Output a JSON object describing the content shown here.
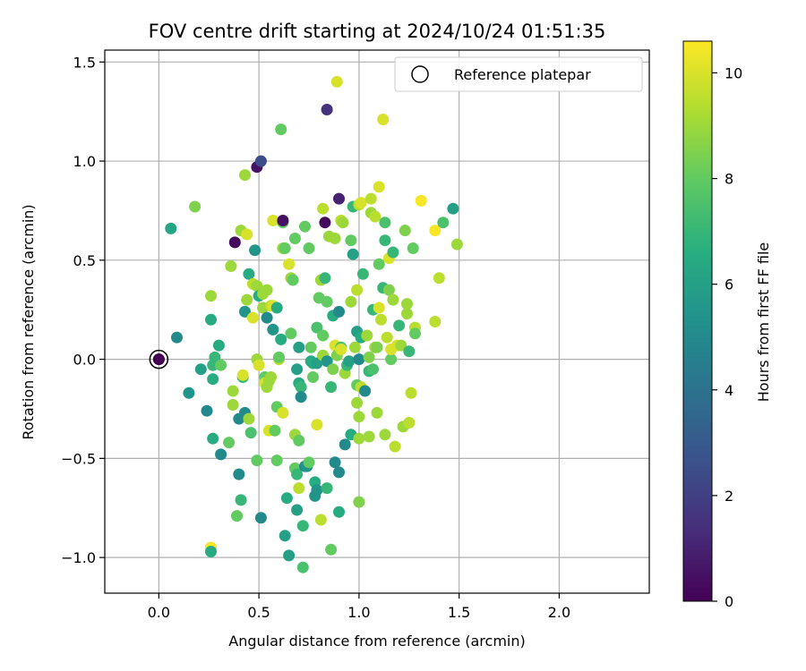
{
  "chart_data": {
    "type": "scatter",
    "title": "FOV centre drift starting at 2024/10/24 01:51:35",
    "xlabel": "Angular distance from reference (arcmin)",
    "ylabel": "Rotation from reference (arcmin)",
    "xlim": [
      -0.27,
      2.45
    ],
    "ylim": [
      -1.18,
      1.56
    ],
    "xticks": [
      0.0,
      0.5,
      1.0,
      1.5,
      2.0
    ],
    "yticks": [
      -1.0,
      -0.5,
      0.0,
      0.5,
      1.0,
      1.5
    ],
    "xtick_labels": [
      "0.0",
      "0.5",
      "1.0",
      "1.5",
      "2.0"
    ],
    "ytick_labels": [
      "−1.0",
      "−0.5",
      "0.0",
      "0.5",
      "1.0",
      "1.5"
    ],
    "grid": true,
    "legend": {
      "position": "top-right",
      "entries": [
        "Reference platepar"
      ]
    },
    "colorbar": {
      "label": "Hours from first FF file",
      "range": [
        0,
        10.6
      ],
      "ticks": [
        0,
        2,
        4,
        6,
        8,
        10
      ],
      "tick_labels": [
        "0",
        "2",
        "4",
        "6",
        "8",
        "10"
      ],
      "colormap": "viridis"
    },
    "reference": {
      "x": 0.0,
      "y": 0.0,
      "c": 0
    },
    "points": [
      [
        0.0,
        0.0,
        0
      ],
      [
        0.06,
        0.66,
        6.2
      ],
      [
        0.09,
        0.11,
        5
      ],
      [
        0.15,
        -0.17,
        5.5
      ],
      [
        0.18,
        0.77,
        8.5
      ],
      [
        0.21,
        -0.05,
        6
      ],
      [
        0.24,
        -0.26,
        5
      ],
      [
        0.26,
        0.2,
        6.5
      ],
      [
        0.26,
        0.32,
        9
      ],
      [
        0.26,
        -0.95,
        10.5
      ],
      [
        0.26,
        -0.97,
        6.5
      ],
      [
        0.27,
        -0.03,
        7
      ],
      [
        0.27,
        -0.4,
        6.5
      ],
      [
        0.27,
        -0.1,
        6.5
      ],
      [
        0.28,
        0.01,
        7
      ],
      [
        0.3,
        0.07,
        6.5
      ],
      [
        0.31,
        -0.03,
        8
      ],
      [
        0.31,
        -0.48,
        5
      ],
      [
        0.35,
        -0.42,
        8
      ],
      [
        0.36,
        0.47,
        9
      ],
      [
        0.37,
        -0.16,
        9
      ],
      [
        0.37,
        -0.23,
        9
      ],
      [
        0.38,
        0.59,
        0.3
      ],
      [
        0.39,
        -0.79,
        8
      ],
      [
        0.4,
        -0.3,
        5
      ],
      [
        0.4,
        -0.58,
        5
      ],
      [
        0.41,
        0.65,
        9
      ],
      [
        0.41,
        -0.71,
        7
      ],
      [
        0.42,
        -0.09,
        7
      ],
      [
        0.42,
        -0.08,
        10
      ],
      [
        0.43,
        0.93,
        9
      ],
      [
        0.43,
        0.24,
        5.5
      ],
      [
        0.43,
        -0.27,
        5
      ],
      [
        0.44,
        0.3,
        9
      ],
      [
        0.44,
        0.63,
        10
      ],
      [
        0.45,
        -0.3,
        9
      ],
      [
        0.45,
        0.43,
        6.5
      ],
      [
        0.46,
        -0.37,
        7.5
      ],
      [
        0.47,
        0.21,
        10
      ],
      [
        0.47,
        0.38,
        9.5
      ],
      [
        0.48,
        0.55,
        5.5
      ],
      [
        0.49,
        0.37,
        9
      ],
      [
        0.49,
        -0.51,
        8
      ],
      [
        0.49,
        0.0,
        9
      ],
      [
        0.49,
        0.97,
        0.5
      ],
      [
        0.5,
        -0.03,
        10
      ],
      [
        0.5,
        0.32,
        6.5
      ],
      [
        0.51,
        1.0,
        2.5
      ],
      [
        0.51,
        -0.8,
        5
      ],
      [
        0.52,
        0.26,
        9
      ],
      [
        0.52,
        0.33,
        9
      ],
      [
        0.53,
        -0.09,
        8
      ],
      [
        0.53,
        -0.12,
        10
      ],
      [
        0.54,
        0.35,
        9
      ],
      [
        0.54,
        0.21,
        5
      ],
      [
        0.54,
        -0.14,
        9
      ],
      [
        0.55,
        -0.11,
        9
      ],
      [
        0.55,
        -0.36,
        10
      ],
      [
        0.56,
        -0.09,
        9
      ],
      [
        0.56,
        0.27,
        9.5
      ],
      [
        0.57,
        0.27,
        10
      ],
      [
        0.57,
        0.15,
        5.5
      ],
      [
        0.57,
        0.7,
        10
      ],
      [
        0.58,
        -0.36,
        8
      ],
      [
        0.59,
        -0.24,
        8
      ],
      [
        0.59,
        0.26,
        6.5
      ],
      [
        0.59,
        -0.51,
        8
      ],
      [
        0.6,
        0.0,
        9.5
      ],
      [
        0.6,
        0.01,
        8
      ],
      [
        0.61,
        1.16,
        8
      ],
      [
        0.61,
        0.1,
        6.5
      ],
      [
        0.62,
        0.56,
        9
      ],
      [
        0.62,
        0.69,
        8
      ],
      [
        0.62,
        0.7,
        0.5
      ],
      [
        0.62,
        -0.27,
        10
      ],
      [
        0.63,
        0.56,
        8
      ],
      [
        0.63,
        -0.89,
        6
      ],
      [
        0.64,
        -0.7,
        6.5
      ],
      [
        0.65,
        -0.99,
        6
      ],
      [
        0.65,
        0.48,
        10
      ],
      [
        0.66,
        0.13,
        8
      ],
      [
        0.66,
        0.41,
        9
      ],
      [
        0.67,
        0.4,
        8
      ],
      [
        0.68,
        0.61,
        8
      ],
      [
        0.68,
        -0.38,
        9
      ],
      [
        0.68,
        -0.55,
        8
      ],
      [
        0.69,
        -0.05,
        6
      ],
      [
        0.69,
        -0.58,
        7
      ],
      [
        0.69,
        -0.76,
        6
      ],
      [
        0.7,
        -0.41,
        8
      ],
      [
        0.7,
        -0.12,
        6.5
      ],
      [
        0.7,
        -0.65,
        9.5
      ],
      [
        0.7,
        0.06,
        6
      ],
      [
        0.71,
        -0.14,
        7
      ],
      [
        0.71,
        -0.19,
        5
      ],
      [
        0.72,
        -1.05,
        7.5
      ],
      [
        0.72,
        -0.84,
        7
      ],
      [
        0.73,
        0.67,
        8
      ],
      [
        0.73,
        -0.54,
        5
      ],
      [
        0.74,
        -0.54,
        5.5
      ],
      [
        0.75,
        0.56,
        8
      ],
      [
        0.75,
        -0.52,
        8
      ],
      [
        0.76,
        -0.01,
        6.5
      ],
      [
        0.76,
        0.06,
        8
      ],
      [
        0.77,
        -0.09,
        8
      ],
      [
        0.77,
        -0.02,
        6.5
      ],
      [
        0.78,
        -0.62,
        6.5
      ],
      [
        0.78,
        -0.69,
        5.5
      ],
      [
        0.79,
        -0.66,
        5.5
      ],
      [
        0.79,
        0.16,
        7.5
      ],
      [
        0.79,
        -0.33,
        10
      ],
      [
        0.79,
        -0.02,
        6
      ],
      [
        0.8,
        0.31,
        8
      ],
      [
        0.81,
        0.4,
        9
      ],
      [
        0.81,
        -0.81,
        9.5
      ],
      [
        0.82,
        0.76,
        9.5
      ],
      [
        0.82,
        0.02,
        9
      ],
      [
        0.82,
        0.12,
        8
      ],
      [
        0.83,
        0.41,
        7
      ],
      [
        0.83,
        0.69,
        0.3
      ],
      [
        0.84,
        1.26,
        1.5
      ],
      [
        0.84,
        0.29,
        8
      ],
      [
        0.84,
        -0.65,
        7
      ],
      [
        0.84,
        -0.01,
        5.5
      ],
      [
        0.85,
        0.62,
        9
      ],
      [
        0.86,
        -0.96,
        8
      ],
      [
        0.86,
        -0.14,
        7
      ],
      [
        0.87,
        0.22,
        6.5
      ],
      [
        0.87,
        -0.05,
        8.5
      ],
      [
        0.88,
        0.61,
        9
      ],
      [
        0.88,
        -0.52,
        5
      ],
      [
        0.88,
        0.07,
        10
      ],
      [
        0.89,
        1.4,
        10
      ],
      [
        0.89,
        0.02,
        8.5
      ],
      [
        0.9,
        0.24,
        5
      ],
      [
        0.9,
        -0.57,
        5
      ],
      [
        0.9,
        0.81,
        1
      ],
      [
        0.9,
        -0.77,
        6.5
      ],
      [
        0.91,
        0.06,
        7.5
      ],
      [
        0.91,
        0.7,
        9.5
      ],
      [
        0.91,
        0.05,
        10
      ],
      [
        0.92,
        0.69,
        9
      ],
      [
        0.93,
        -0.07,
        9
      ],
      [
        0.93,
        -0.43,
        5
      ],
      [
        0.94,
        -0.03,
        7
      ],
      [
        0.95,
        -0.01,
        6
      ],
      [
        0.96,
        0.6,
        8
      ],
      [
        0.96,
        -0.38,
        6.5
      ],
      [
        0.96,
        0.29,
        9
      ],
      [
        0.97,
        0.53,
        6
      ],
      [
        0.97,
        0.77,
        7
      ],
      [
        0.98,
        0.06,
        9
      ],
      [
        0.99,
        0.14,
        6
      ],
      [
        0.99,
        -0.13,
        8
      ],
      [
        0.99,
        -0.22,
        9
      ],
      [
        0.99,
        0.35,
        9.5
      ],
      [
        1.0,
        -0.4,
        9
      ],
      [
        1.0,
        -0.72,
        8.5
      ],
      [
        1.0,
        0.78,
        9.5
      ],
      [
        1.0,
        -0.29,
        9
      ],
      [
        1.0,
        0.0,
        5
      ],
      [
        1.01,
        0.11,
        6.5
      ],
      [
        1.01,
        0.79,
        10
      ],
      [
        1.01,
        -0.14,
        9.5
      ],
      [
        1.02,
        0.43,
        7
      ],
      [
        1.03,
        -0.16,
        5
      ],
      [
        1.04,
        0.12,
        9
      ],
      [
        1.05,
        -0.39,
        9
      ],
      [
        1.05,
        0.01,
        8.5
      ],
      [
        1.05,
        -0.06,
        7
      ],
      [
        1.06,
        0.81,
        9.5
      ],
      [
        1.06,
        0.74,
        9
      ],
      [
        1.07,
        0.25,
        7
      ],
      [
        1.07,
        -0.05,
        7.5
      ],
      [
        1.08,
        0.72,
        9.5
      ],
      [
        1.08,
        0.06,
        9
      ],
      [
        1.09,
        0.06,
        8.5
      ],
      [
        1.09,
        -0.27,
        9
      ],
      [
        1.1,
        0.48,
        8
      ],
      [
        1.1,
        0.87,
        10
      ],
      [
        1.1,
        0.26,
        10
      ],
      [
        1.11,
        0.2,
        9.5
      ],
      [
        1.12,
        1.21,
        10
      ],
      [
        1.12,
        0.36,
        7
      ],
      [
        1.13,
        0.6,
        7
      ],
      [
        1.13,
        0.69,
        7.5
      ],
      [
        1.13,
        -0.38,
        9
      ],
      [
        1.14,
        0.11,
        9.5
      ],
      [
        1.15,
        0.51,
        10
      ],
      [
        1.15,
        0.35,
        8.5
      ],
      [
        1.16,
        0.0,
        8
      ],
      [
        1.16,
        0.05,
        10
      ],
      [
        1.17,
        0.3,
        9
      ],
      [
        1.17,
        0.54,
        7
      ],
      [
        1.18,
        -0.44,
        9.5
      ],
      [
        1.19,
        0.07,
        10
      ],
      [
        1.2,
        0.17,
        7
      ],
      [
        1.21,
        0.07,
        9
      ],
      [
        1.22,
        -0.34,
        9
      ],
      [
        1.23,
        0.65,
        8.5
      ],
      [
        1.24,
        0.23,
        9
      ],
      [
        1.24,
        0.28,
        9
      ],
      [
        1.25,
        0.04,
        7
      ],
      [
        1.25,
        -0.32,
        9.5
      ],
      [
        1.26,
        -0.17,
        9.5
      ],
      [
        1.27,
        0.56,
        8
      ],
      [
        1.28,
        0.16,
        9.5
      ],
      [
        1.28,
        0.13,
        8
      ],
      [
        1.31,
        0.8,
        10.5
      ],
      [
        1.38,
        0.65,
        10.5
      ],
      [
        1.38,
        0.19,
        9.5
      ],
      [
        1.4,
        0.41,
        9.5
      ],
      [
        1.42,
        0.69,
        7.5
      ],
      [
        1.47,
        0.76,
        6
      ],
      [
        1.49,
        0.58,
        9
      ]
    ]
  }
}
